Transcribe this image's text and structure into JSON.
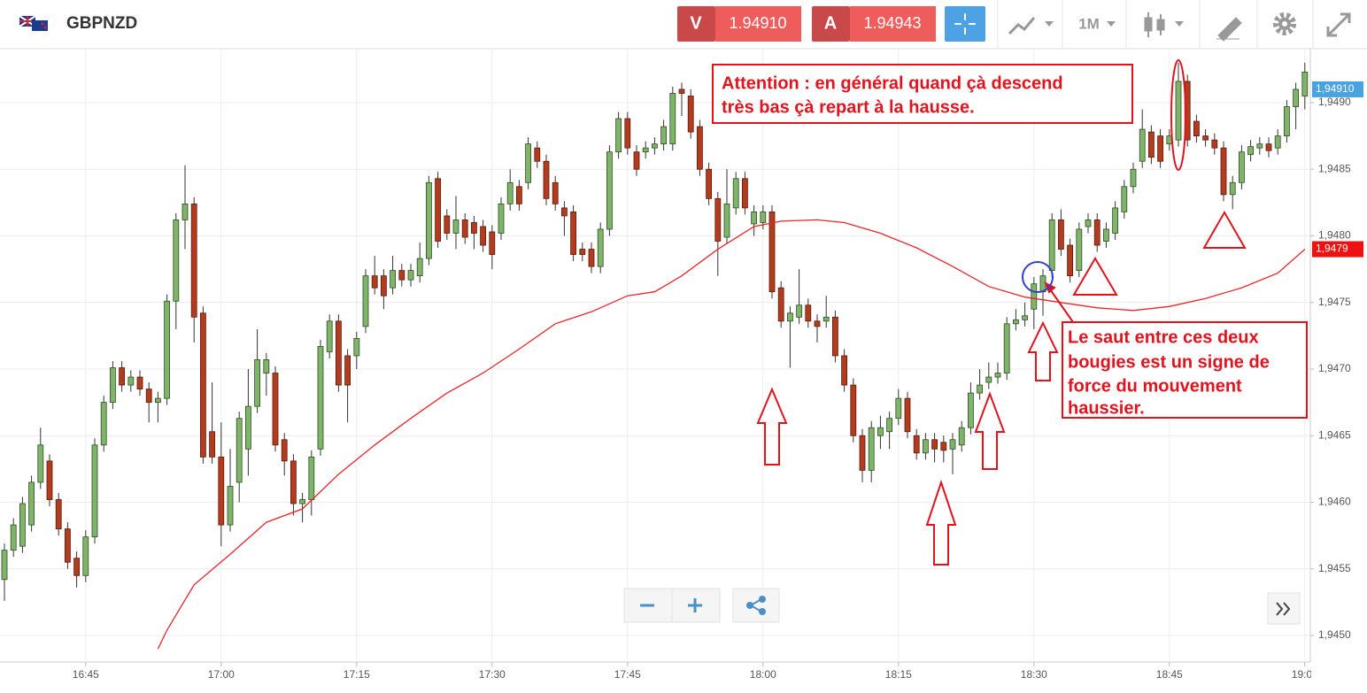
{
  "header": {
    "symbol": "GBPNZD",
    "sell_label": "V",
    "sell_price": "1.94910",
    "buy_label": "A",
    "buy_price": "1.94943",
    "timeframe": "1M"
  },
  "chart_data": {
    "type": "candlestick",
    "up_color": "#7fb46a",
    "down_color": "#b33b1e",
    "x": [
      "16:36",
      "16:37",
      "16:38",
      "16:39",
      "16:40",
      "16:41",
      "16:42",
      "16:43",
      "16:44",
      "16:45",
      "16:46",
      "16:47",
      "16:48",
      "16:49",
      "16:50",
      "16:51",
      "16:52",
      "16:53",
      "16:54",
      "16:55",
      "16:56",
      "16:57",
      "16:58",
      "16:59",
      "17:00",
      "17:01",
      "17:02",
      "17:03",
      "17:04",
      "17:05",
      "17:06",
      "17:07",
      "17:08",
      "17:09",
      "17:10",
      "17:11",
      "17:12",
      "17:13",
      "17:14",
      "17:15",
      "17:16",
      "17:17",
      "17:18",
      "17:19",
      "17:20",
      "17:21",
      "17:22",
      "17:23",
      "17:24",
      "17:25",
      "17:26",
      "17:27",
      "17:28",
      "17:29",
      "17:30",
      "17:31",
      "17:32",
      "17:33",
      "17:34",
      "17:35",
      "17:36",
      "17:37",
      "17:38",
      "17:39",
      "17:40",
      "17:41",
      "17:42",
      "17:43",
      "17:44",
      "17:45",
      "17:46",
      "17:47",
      "17:48",
      "17:49",
      "17:50",
      "17:51",
      "17:52",
      "17:53",
      "17:54",
      "17:55",
      "17:56",
      "17:57",
      "17:58",
      "17:59",
      "18:00",
      "18:01",
      "18:02",
      "18:03",
      "18:04",
      "18:05",
      "18:06",
      "18:07",
      "18:08",
      "18:09",
      "18:10",
      "18:11",
      "18:12",
      "18:13",
      "18:14",
      "18:15",
      "18:16",
      "18:17",
      "18:18",
      "18:19",
      "18:20",
      "18:21",
      "18:22",
      "18:23",
      "18:24",
      "18:25",
      "18:26",
      "18:27",
      "18:28",
      "18:29",
      "18:30",
      "18:31",
      "18:32",
      "18:33",
      "18:34",
      "18:35",
      "18:36",
      "18:37",
      "18:38",
      "18:39",
      "18:40",
      "18:41",
      "18:42",
      "18:43",
      "18:44",
      "18:45",
      "18:46",
      "18:47",
      "18:48",
      "18:49",
      "18:50",
      "18:51",
      "18:52",
      "18:53",
      "18:54",
      "18:55",
      "18:56",
      "18:57",
      "18:58",
      "18:59",
      "19:00"
    ],
    "candles": [
      [
        1.94542,
        1.94569,
        1.94526,
        1.94564
      ],
      [
        1.94564,
        1.94588,
        1.94559,
        1.94583
      ],
      [
        1.94567,
        1.94604,
        1.94562,
        1.94599
      ],
      [
        1.94583,
        1.9462,
        1.94578,
        1.94615
      ],
      [
        1.94615,
        1.94656,
        1.9461,
        1.94643
      ],
      [
        1.94631,
        1.94636,
        1.94597,
        1.94602
      ],
      [
        1.94602,
        1.94607,
        1.94575,
        1.9458
      ],
      [
        1.9458,
        1.94585,
        1.9455,
        1.94555
      ],
      [
        1.94558,
        1.94563,
        1.94536,
        1.94545
      ],
      [
        1.94545,
        1.94579,
        1.9454,
        1.94574
      ],
      [
        1.94574,
        1.94648,
        1.94569,
        1.94643
      ],
      [
        1.94643,
        1.9468,
        1.94638,
        1.94675
      ],
      [
        1.94675,
        1.94706,
        1.9467,
        1.94701
      ],
      [
        1.94701,
        1.94706,
        1.94683,
        1.94688
      ],
      [
        1.94688,
        1.94699,
        1.94683,
        1.94694
      ],
      [
        1.94694,
        1.94699,
        1.9468,
        1.94685
      ],
      [
        1.94685,
        1.9469,
        1.9466,
        1.94675
      ],
      [
        1.94675,
        1.94683,
        1.9466,
        1.94678
      ],
      [
        1.94678,
        1.94756,
        1.94673,
        1.94751
      ],
      [
        1.94751,
        1.94817,
        1.9473,
        1.94812
      ],
      [
        1.94812,
        1.94853,
        1.9479,
        1.94824
      ],
      [
        1.94824,
        1.94829,
        1.9472,
        1.94739
      ],
      [
        1.94742,
        1.94747,
        1.94629,
        1.94634
      ],
      [
        1.94653,
        1.9469,
        1.94629,
        1.94634
      ],
      [
        1.94634,
        1.9466,
        1.94567,
        1.94583
      ],
      [
        1.94583,
        1.9464,
        1.94578,
        1.94612
      ],
      [
        1.94615,
        1.94668,
        1.946,
        1.94663
      ],
      [
        1.9464,
        1.947,
        1.9462,
        1.94672
      ],
      [
        1.94672,
        1.9473,
        1.94667,
        1.94707
      ],
      [
        1.94697,
        1.94712,
        1.9468,
        1.94707
      ],
      [
        1.94697,
        1.94702,
        1.94638,
        1.94643
      ],
      [
        1.94647,
        1.94652,
        1.9462,
        1.94631
      ],
      [
        1.94631,
        1.94636,
        1.9459,
        1.94599
      ],
      [
        1.94599,
        1.94607,
        1.94585,
        1.94602
      ],
      [
        1.94602,
        1.94639,
        1.9459,
        1.94634
      ],
      [
        1.9464,
        1.94722,
        1.94635,
        1.94717
      ],
      [
        1.94713,
        1.94741,
        1.94708,
        1.94736
      ],
      [
        1.94736,
        1.94741,
        1.94683,
        1.94688
      ],
      [
        1.9471,
        1.94715,
        1.9466,
        1.94688
      ],
      [
        1.9471,
        1.94728,
        1.947,
        1.94723
      ],
      [
        1.94732,
        1.94775,
        1.94727,
        1.9477
      ],
      [
        1.9477,
        1.94785,
        1.94756,
        1.94761
      ],
      [
        1.9477,
        1.94775,
        1.94745,
        1.94755
      ],
      [
        1.94761,
        1.94785,
        1.94756,
        1.94774
      ],
      [
        1.94774,
        1.94779,
        1.94762,
        1.94767
      ],
      [
        1.94767,
        1.94779,
        1.94762,
        1.94774
      ],
      [
        1.9477,
        1.94795,
        1.94765,
        1.94783
      ],
      [
        1.94783,
        1.94845,
        1.94778,
        1.9484
      ],
      [
        1.94843,
        1.94848,
        1.94791,
        1.94796
      ],
      [
        1.94815,
        1.9482,
        1.94797,
        1.94802
      ],
      [
        1.94802,
        1.9483,
        1.9479,
        1.94812
      ],
      [
        1.94812,
        1.94817,
        1.94794,
        1.94799
      ],
      [
        1.9481,
        1.94815,
        1.9479,
        1.94802
      ],
      [
        1.94807,
        1.94812,
        1.94788,
        1.94793
      ],
      [
        1.94803,
        1.94808,
        1.94775,
        1.94786
      ],
      [
        1.94802,
        1.94829,
        1.94797,
        1.94824
      ],
      [
        1.94824,
        1.9485,
        1.94819,
        1.9484
      ],
      [
        1.94837,
        1.94842,
        1.94819,
        1.94824
      ],
      [
        1.9484,
        1.94874,
        1.94835,
        1.94869
      ],
      [
        1.94866,
        1.94871,
        1.94851,
        1.94856
      ],
      [
        1.94856,
        1.94861,
        1.94823,
        1.94828
      ],
      [
        1.9484,
        1.94845,
        1.94819,
        1.94824
      ],
      [
        1.94821,
        1.94826,
        1.948,
        1.94815
      ],
      [
        1.94818,
        1.94823,
        1.94781,
        1.94786
      ],
      [
        1.9479,
        1.94795,
        1.94781,
        1.94786
      ],
      [
        1.9479,
        1.94795,
        1.94772,
        1.94777
      ],
      [
        1.94777,
        1.9481,
        1.94772,
        1.94805
      ],
      [
        1.94805,
        1.94868,
        1.948,
        1.94863
      ],
      [
        1.94863,
        1.94893,
        1.94858,
        1.94888
      ],
      [
        1.94888,
        1.94893,
        1.94861,
        1.94866
      ],
      [
        1.94863,
        1.94868,
        1.94845,
        1.9485
      ],
      [
        1.94863,
        1.94871,
        1.94858,
        1.94866
      ],
      [
        1.94866,
        1.94874,
        1.94861,
        1.94869
      ],
      [
        1.94869,
        1.94887,
        1.94864,
        1.94882
      ],
      [
        1.94869,
        1.94912,
        1.94864,
        1.94907
      ],
      [
        1.9491,
        1.94915,
        1.9489,
        1.94907
      ],
      [
        1.94905,
        1.9491,
        1.94873,
        1.94878
      ],
      [
        1.94882,
        1.94887,
        1.94845,
        1.9485
      ],
      [
        1.9485,
        1.94855,
        1.94823,
        1.94828
      ],
      [
        1.94828,
        1.94833,
        1.9477,
        1.94796
      ],
      [
        1.94799,
        1.9485,
        1.94794,
        1.94824
      ],
      [
        1.94821,
        1.94848,
        1.94816,
        1.94843
      ],
      [
        1.94843,
        1.94848,
        1.94816,
        1.94821
      ],
      [
        1.94809,
        1.94823,
        1.948,
        1.94818
      ],
      [
        1.9481,
        1.94823,
        1.94805,
        1.94818
      ],
      [
        1.94818,
        1.94823,
        1.94753,
        1.94758
      ],
      [
        1.94761,
        1.94766,
        1.94731,
        1.94736
      ],
      [
        1.94736,
        1.94747,
        1.94701,
        1.94742
      ],
      [
        1.94739,
        1.94775,
        1.94734,
        1.94748
      ],
      [
        1.94748,
        1.94753,
        1.94731,
        1.94736
      ],
      [
        1.94736,
        1.94741,
        1.9472,
        1.94732
      ],
      [
        1.94736,
        1.94755,
        1.94731,
        1.94739
      ],
      [
        1.94739,
        1.94744,
        1.94705,
        1.9471
      ],
      [
        1.9471,
        1.94715,
        1.94683,
        1.94688
      ],
      [
        1.94688,
        1.94693,
        1.94645,
        1.9465
      ],
      [
        1.9465,
        1.94655,
        1.94615,
        1.94624
      ],
      [
        1.94624,
        1.94661,
        1.94615,
        1.94656
      ],
      [
        1.9465,
        1.94665,
        1.9464,
        1.94656
      ],
      [
        1.94653,
        1.94668,
        1.9464,
        1.94663
      ],
      [
        1.94663,
        1.94685,
        1.94658,
        1.94678
      ],
      [
        1.94678,
        1.94683,
        1.94648,
        1.94653
      ],
      [
        1.9465,
        1.94655,
        1.94632,
        1.94637
      ],
      [
        1.94637,
        1.94652,
        1.94632,
        1.94647
      ],
      [
        1.94647,
        1.94652,
        1.9463,
        1.9464
      ],
      [
        1.94645,
        1.9465,
        1.9463,
        1.94639
      ],
      [
        1.9464,
        1.94652,
        1.94621,
        1.94647
      ],
      [
        1.94643,
        1.94661,
        1.94638,
        1.94656
      ],
      [
        1.94656,
        1.9469,
        1.94651,
        1.94682
      ],
      [
        1.94682,
        1.947,
        1.94677,
        1.94688
      ],
      [
        1.9469,
        1.94705,
        1.94685,
        1.94694
      ],
      [
        1.94694,
        1.94705,
        1.94689,
        1.94697
      ],
      [
        1.94697,
        1.94739,
        1.94692,
        1.94734
      ],
      [
        1.94734,
        1.94745,
        1.94729,
        1.94737
      ],
      [
        1.94737,
        1.9475,
        1.94732,
        1.9474
      ],
      [
        1.94745,
        1.94769,
        1.9473,
        1.94764
      ],
      [
        1.94758,
        1.94775,
        1.9474,
        1.9477
      ],
      [
        1.94774,
        1.94817,
        1.94769,
        1.94812
      ],
      [
        1.94812,
        1.9482,
        1.94785,
        1.9479
      ],
      [
        1.94793,
        1.94798,
        1.94765,
        1.9477
      ],
      [
        1.94774,
        1.9481,
        1.94769,
        1.94805
      ],
      [
        1.94807,
        1.94817,
        1.94802,
        1.94812
      ],
      [
        1.94812,
        1.94817,
        1.94788,
        1.94793
      ],
      [
        1.94796,
        1.9481,
        1.94791,
        1.94805
      ],
      [
        1.94802,
        1.94826,
        1.94797,
        1.94821
      ],
      [
        1.94818,
        1.94842,
        1.94813,
        1.94837
      ],
      [
        1.94837,
        1.94855,
        1.94832,
        1.9485
      ],
      [
        1.94856,
        1.94895,
        1.94851,
        1.9488
      ],
      [
        1.94878,
        1.94883,
        1.94854,
        1.94859
      ],
      [
        1.94875,
        1.9488,
        1.94851,
        1.94856
      ],
      [
        1.94869,
        1.9488,
        1.94864,
        1.94875
      ],
      [
        1.94872,
        1.9493,
        1.94867,
        1.94916
      ],
      [
        1.94916,
        1.94921,
        1.94867,
        1.94872
      ],
      [
        1.94886,
        1.94891,
        1.9487,
        1.94875
      ],
      [
        1.94875,
        1.9488,
        1.94867,
        1.94872
      ],
      [
        1.94872,
        1.94877,
        1.94861,
        1.94866
      ],
      [
        1.94866,
        1.94871,
        1.94826,
        1.94831
      ],
      [
        1.94831,
        1.94845,
        1.9482,
        1.9484
      ],
      [
        1.9484,
        1.94868,
        1.94835,
        1.94863
      ],
      [
        1.94861,
        1.94872,
        1.94856,
        1.94867
      ],
      [
        1.94866,
        1.94874,
        1.94861,
        1.94869
      ],
      [
        1.94869,
        1.94874,
        1.94859,
        1.94864
      ],
      [
        1.94866,
        1.9488,
        1.94861,
        1.94875
      ],
      [
        1.94875,
        1.94902,
        1.9487,
        1.94897
      ],
      [
        1.94897,
        1.94915,
        1.9488,
        1.9491
      ],
      [
        1.94905,
        1.9493,
        1.94895,
        1.94923
      ]
    ],
    "moving_average": {
      "color": "#e8262a",
      "x": [
        "16:53",
        "16:54",
        "16:57",
        "17:01",
        "17:05",
        "17:09",
        "17:13",
        "17:17",
        "17:21",
        "17:25",
        "17:29",
        "17:33",
        "17:37",
        "17:41",
        "17:45",
        "17:48",
        "17:51",
        "17:55",
        "17:59",
        "18:02",
        "18:06",
        "18:09",
        "18:13",
        "18:17",
        "18:21",
        "18:25",
        "18:29",
        "18:33",
        "18:37",
        "18:41",
        "18:45",
        "18:49",
        "18:53",
        "18:57",
        "19:00"
      ],
      "values": [
        1.9449,
        1.94504,
        1.94538,
        1.94561,
        1.94585,
        1.94595,
        1.94621,
        1.94643,
        1.94663,
        1.94682,
        1.94697,
        1.94715,
        1.94734,
        1.94743,
        1.94755,
        1.94758,
        1.9477,
        1.9479,
        1.94807,
        1.94811,
        1.94812,
        1.9481,
        1.94802,
        1.94791,
        1.94777,
        1.94762,
        1.94754,
        1.9475,
        1.94746,
        1.94744,
        1.94747,
        1.94753,
        1.94761,
        1.94772,
        1.9479
      ]
    },
    "ylim": [
      1.9448,
      1.9494
    ],
    "yticks": [
      {
        "value": 1.945,
        "label": "1,9450"
      },
      {
        "value": 1.9455,
        "label": "1,9455"
      },
      {
        "value": 1.946,
        "label": "1,9460"
      },
      {
        "value": 1.9465,
        "label": "1,9465"
      },
      {
        "value": 1.947,
        "label": "1,9470"
      },
      {
        "value": 1.9475,
        "label": "1,9475"
      },
      {
        "value": 1.948,
        "label": "1,9480"
      },
      {
        "value": 1.9485,
        "label": "1,9485"
      },
      {
        "value": 1.949,
        "label": "1,9490"
      }
    ],
    "xticks": [
      "16:45",
      "17:00",
      "17:15",
      "17:30",
      "17:45",
      "18:00",
      "18:15",
      "18:30",
      "18:45",
      "19:00"
    ],
    "grid": true,
    "price_tags": [
      {
        "value": 1.9491,
        "label": "1,94910",
        "color": "#4aa3df"
      },
      {
        "value": 1.9479,
        "label": "1,9479",
        "color": "#ee1111"
      }
    ],
    "annotations": [
      {
        "lines": [
          "Attention : en général quand çà descend",
          "très bas çà repart à la hausse."
        ]
      },
      {
        "lines": [
          "Le saut entre ces deux",
          "bougies est un signe de",
          "force du mouvement",
          "haussier."
        ]
      }
    ]
  }
}
